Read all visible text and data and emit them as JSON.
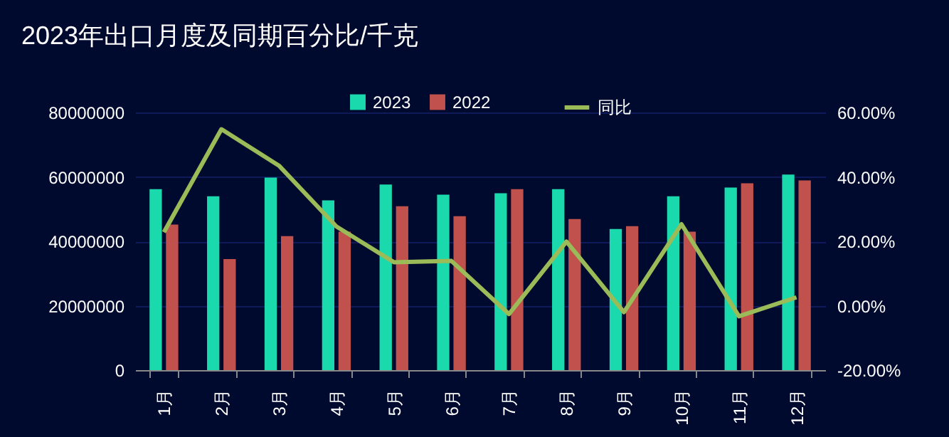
{
  "chart_data": {
    "type": "bar",
    "title": "2023年出口月度及同期百分比/千克",
    "categories": [
      "1月",
      "2月",
      "3月",
      "4月",
      "5月",
      "6月",
      "7月",
      "8月",
      "9月",
      "10月",
      "11月",
      "12月"
    ],
    "series": [
      {
        "name": "2023",
        "color": "#1ad9ad",
        "values": [
          56200000,
          54000000,
          59800000,
          52700000,
          57600000,
          54500000,
          54900000,
          56200000,
          43800000,
          54000000,
          56700000,
          60700000
        ]
      },
      {
        "name": "2022",
        "color": "#c0514d",
        "values": [
          45200000,
          34500000,
          41600000,
          43000000,
          50900000,
          47800000,
          56200000,
          46900000,
          44700000,
          43000000,
          58000000,
          58900000
        ]
      },
      {
        "name": "同比",
        "type": "line",
        "axis": "y2",
        "color": "#9bbb59",
        "values": [
          22.8,
          54.8,
          43.5,
          24.6,
          13.5,
          13.9,
          -2.6,
          19.9,
          -2.0,
          25.3,
          -3.3,
          2.6
        ]
      }
    ],
    "ylim": [
      0,
      80000000
    ],
    "yticks": [
      0,
      20000000,
      40000000,
      60000000,
      80000000
    ],
    "y2lim": [
      -20,
      60
    ],
    "y2ticks": [
      {
        "value": -20,
        "label": "-20.00%"
      },
      {
        "value": 0,
        "label": "0.00%"
      },
      {
        "value": 20,
        "label": "20.00%"
      },
      {
        "value": 40,
        "label": "40.00%"
      },
      {
        "value": 60,
        "label": "60.00%"
      }
    ],
    "grid": "y",
    "legend": "top"
  }
}
